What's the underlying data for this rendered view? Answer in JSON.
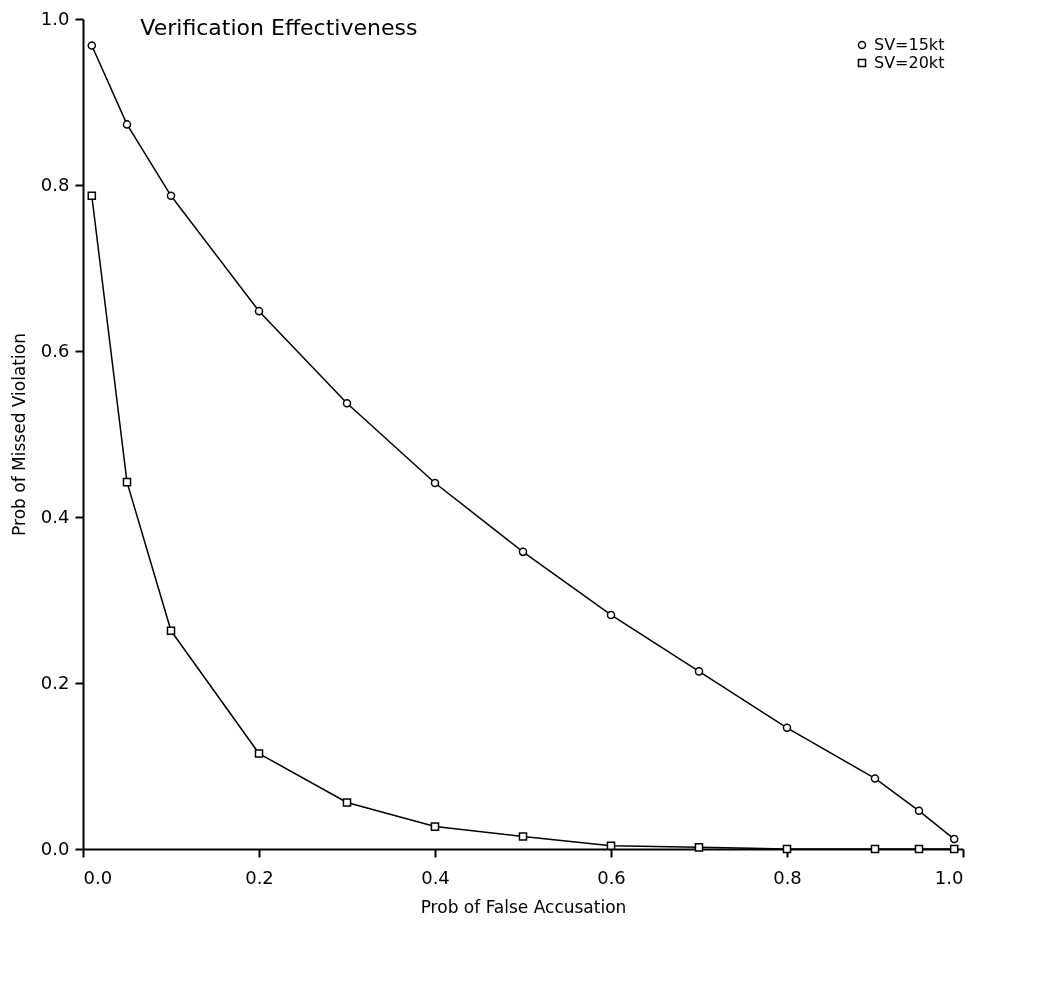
{
  "chart_data": {
    "type": "line",
    "title": "Verification Effectiveness",
    "xlabel": "Prob of False Accusation",
    "ylabel": "Prob of Missed Violation",
    "x": [
      0.01,
      0.05,
      0.1,
      0.2,
      0.3,
      0.4,
      0.5,
      0.6,
      0.7,
      0.8,
      0.9,
      0.95,
      0.99
    ],
    "series": [
      {
        "name": "SV=15kt",
        "color": "#000000",
        "marker": "circle",
        "values": [
          0.968,
          0.873,
          0.787,
          0.648,
          0.537,
          0.441,
          0.358,
          0.282,
          0.214,
          0.146,
          0.085,
          0.046,
          0.012
        ]
      },
      {
        "name": "SV=20kt",
        "color": "#000000",
        "marker": "square",
        "values": [
          0.787,
          0.442,
          0.263,
          0.115,
          0.056,
          0.027,
          0.015,
          0.004,
          0.002,
          0,
          0,
          0,
          0
        ]
      }
    ],
    "xlim": [
      0,
      1
    ],
    "ylim": [
      0,
      1
    ],
    "xticks": [
      {
        "value": 0,
        "label": "0.0"
      },
      {
        "value": 0.2,
        "label": "0.2"
      },
      {
        "value": 0.4,
        "label": "0.4"
      },
      {
        "value": 0.6,
        "label": "0.6"
      },
      {
        "value": 0.8,
        "label": "0.8"
      },
      {
        "value": 1,
        "label": "1.0"
      }
    ],
    "yticks": [
      {
        "value": 0,
        "label": "0.0"
      },
      {
        "value": 0.2,
        "label": "0.2"
      },
      {
        "value": 0.4,
        "label": "0.4"
      },
      {
        "value": 0.6,
        "label": "0.6"
      },
      {
        "value": 0.8,
        "label": "0.8"
      },
      {
        "value": 1,
        "label": "1.0"
      }
    ],
    "grid": false,
    "legend": "top right",
    "line_style": "solid"
  }
}
